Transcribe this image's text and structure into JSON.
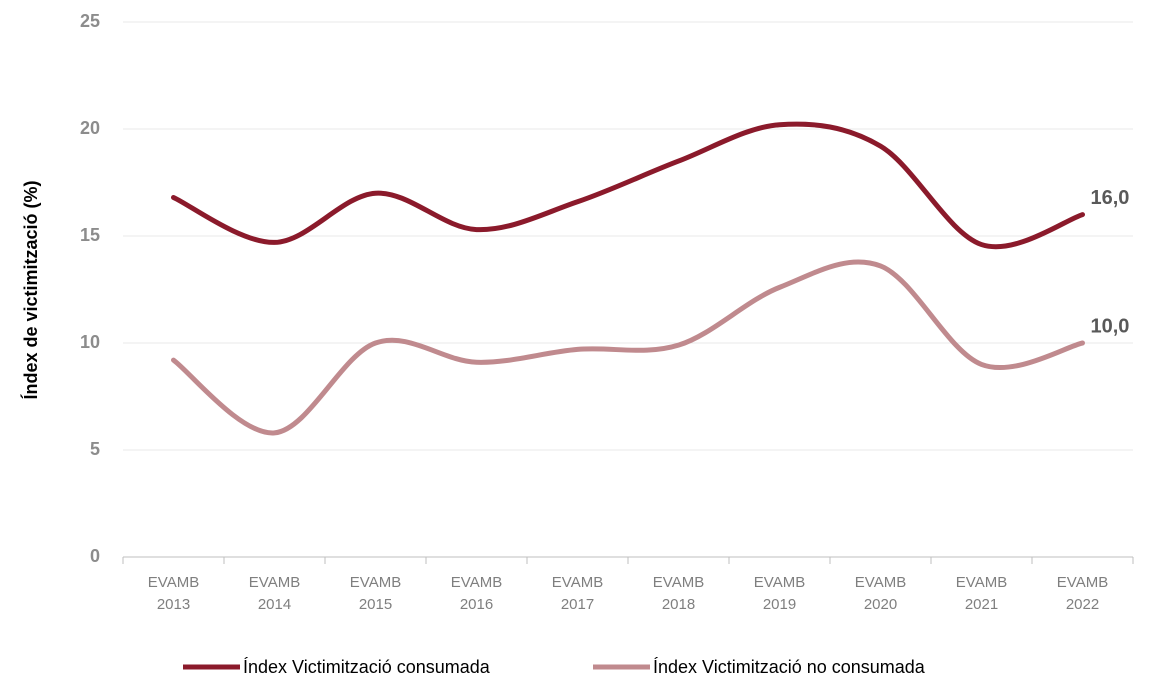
{
  "chart_data": {
    "type": "line",
    "y_label": "Índex de victimització (%)",
    "categories": [
      [
        "EVAMB",
        "2013"
      ],
      [
        "EVAMB",
        "2014"
      ],
      [
        "EVAMB",
        "2015"
      ],
      [
        "EVAMB",
        "2016"
      ],
      [
        "EVAMB",
        "2017"
      ],
      [
        "EVAMB",
        "2018"
      ],
      [
        "EVAMB",
        "2019"
      ],
      [
        "EVAMB",
        "2020"
      ],
      [
        "EVAMB",
        "2021"
      ],
      [
        "EVAMB",
        "2022"
      ]
    ],
    "series": [
      {
        "name": "Índex Victimització consumada",
        "color": "#8b1a2b",
        "values": [
          16.8,
          14.7,
          17.0,
          15.3,
          16.6,
          18.5,
          20.2,
          19.2,
          14.6,
          16.0
        ],
        "value_labels": [
          null,
          null,
          null,
          null,
          null,
          null,
          null,
          null,
          null,
          "16,0"
        ]
      },
      {
        "name": "Índex Victimització no consumada",
        "color": "#c08a8e",
        "values": [
          9.2,
          5.8,
          10.0,
          9.1,
          9.7,
          9.9,
          12.6,
          13.6,
          9.0,
          10.0
        ],
        "value_labels": [
          null,
          null,
          null,
          null,
          null,
          null,
          null,
          null,
          null,
          "10,0"
        ]
      }
    ],
    "ylim": [
      0,
      25
    ],
    "yticks": [
      0,
      5,
      10,
      15,
      20,
      25
    ],
    "grid": true,
    "smooth": true,
    "legend": "bottom"
  }
}
